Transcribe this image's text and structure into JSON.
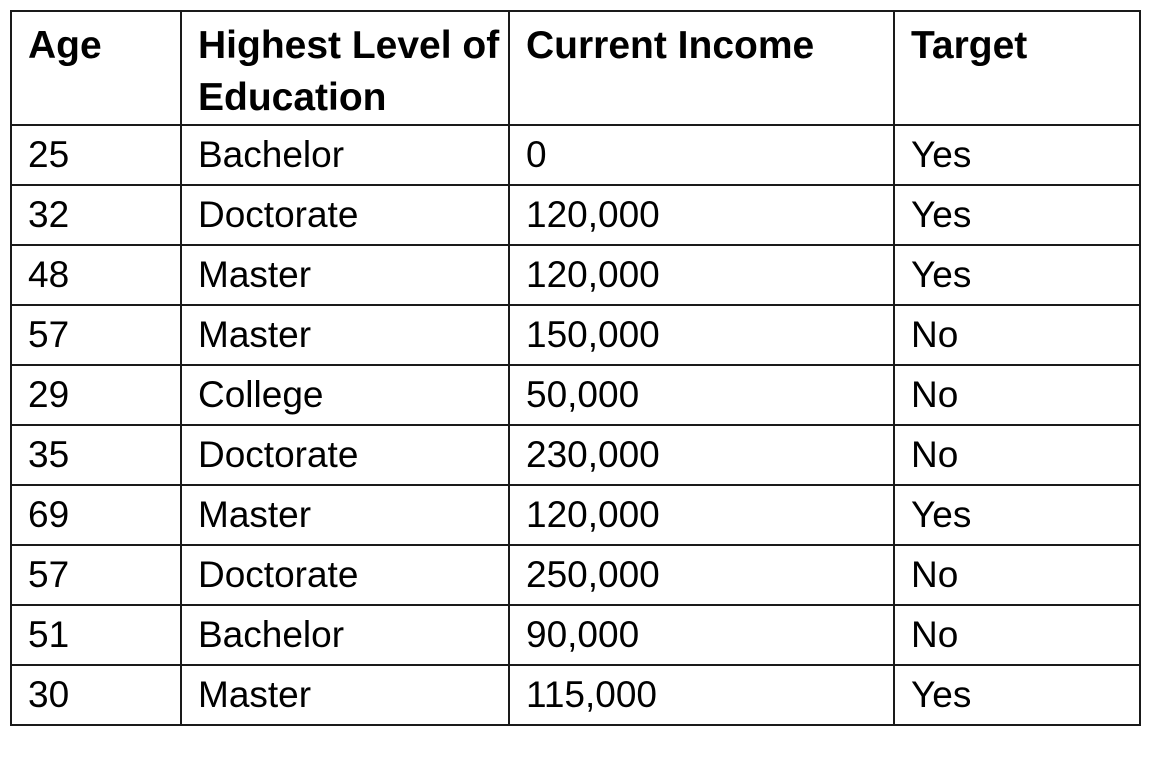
{
  "table": {
    "headers": [
      "Age",
      "Highest Level of Education",
      "Current Income",
      "Target"
    ],
    "rows": [
      [
        "25",
        "Bachelor",
        "0",
        "Yes"
      ],
      [
        "32",
        "Doctorate",
        "120,000",
        "Yes"
      ],
      [
        "48",
        "Master",
        "120,000",
        "Yes"
      ],
      [
        "57",
        "Master",
        "150,000",
        "No"
      ],
      [
        "29",
        "College",
        "50,000",
        "No"
      ],
      [
        "35",
        "Doctorate",
        "230,000",
        "No"
      ],
      [
        "69",
        "Master",
        "120,000",
        "Yes"
      ],
      [
        "57",
        "Doctorate",
        "250,000",
        "No"
      ],
      [
        "51",
        "Bachelor",
        "90,000",
        "No"
      ],
      [
        "30",
        "Master",
        "115,000",
        "Yes"
      ]
    ]
  }
}
